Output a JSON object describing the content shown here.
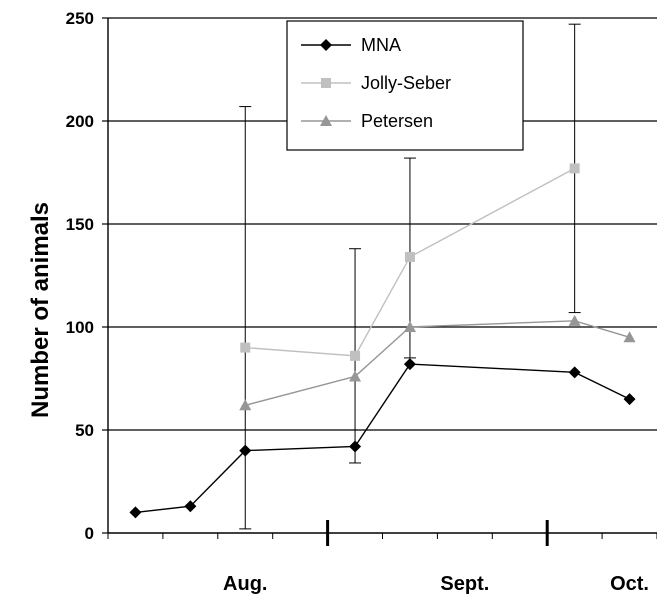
{
  "chart_data": {
    "type": "line",
    "title": "",
    "xlabel": "",
    "ylabel": "Number of animals",
    "ylim": [
      0,
      250
    ],
    "yticks": [
      0,
      50,
      100,
      150,
      200,
      250
    ],
    "grid": true,
    "legend_position": "top-center",
    "x_slots": 10,
    "categories": [
      "Aug.",
      "Sept.",
      "Oct."
    ],
    "category_centers": [
      2,
      6,
      9
    ],
    "month_dividers": [
      3.5,
      7.5
    ],
    "series": [
      {
        "name": "MNA",
        "color": "#000000",
        "marker": "diamond",
        "points": [
          [
            0,
            10
          ],
          [
            1,
            13
          ],
          [
            2,
            40
          ],
          [
            4,
            42
          ],
          [
            5,
            82
          ],
          [
            8,
            78
          ],
          [
            9,
            65
          ]
        ]
      },
      {
        "name": "Jolly-Seber",
        "color": "#c0c0c0",
        "marker": "square",
        "points": [
          [
            2,
            90
          ],
          [
            4,
            86
          ],
          [
            5,
            134
          ],
          [
            8,
            177
          ]
        ]
      },
      {
        "name": "Petersen",
        "color": "#969696",
        "marker": "triangle",
        "points": [
          [
            2,
            62
          ],
          [
            4,
            76
          ],
          [
            5,
            100
          ],
          [
            8,
            103
          ],
          [
            9,
            95
          ]
        ]
      }
    ],
    "error_bars": [
      {
        "x": 2,
        "low": 2,
        "high": 207
      },
      {
        "x": 4,
        "low": 34,
        "high": 138
      },
      {
        "x": 5,
        "low": 85,
        "high": 182
      },
      {
        "x": 8,
        "low": 107,
        "high": 247
      }
    ]
  }
}
